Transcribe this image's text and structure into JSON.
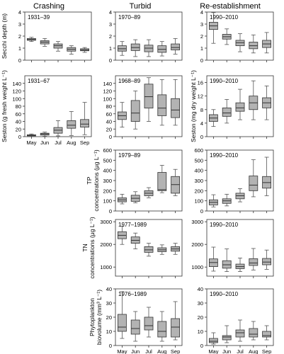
{
  "colors": {
    "box_fill": "#b3b3b3",
    "stroke": "#333333",
    "whisker": "#555555",
    "background": "#ffffff"
  },
  "chart_data": {
    "type": "box",
    "columns": [
      "Crashing",
      "Turbid",
      "Re-establishment"
    ],
    "months": [
      "May",
      "Jun",
      "Jul",
      "Aug",
      "Sep"
    ],
    "rows": [
      {
        "ylabel": [
          "Secchi depth (m)"
        ],
        "ylim": [
          0,
          4
        ],
        "ticks": [
          0,
          1,
          2,
          3,
          4
        ]
      },
      {
        "ylabel": [
          "Seston (g fresh weight L⁻¹)"
        ],
        "ylabel_right": [
          "Seston (mg dry weight L⁻¹)"
        ],
        "ylim": [
          0,
          160
        ],
        "ticks": [
          0,
          20,
          40,
          60,
          80,
          100,
          120,
          140
        ],
        "ylim_right": [
          0,
          18
        ],
        "ticks_right": [
          0,
          4,
          8,
          12,
          16
        ]
      },
      {
        "ylabel": [
          "TP",
          "concentrations (μg L⁻¹)"
        ],
        "ylim": [
          0,
          600
        ],
        "ticks": [
          0,
          100,
          200,
          300,
          400,
          500,
          600
        ]
      },
      {
        "ylabel": [
          "TN",
          "concentrations (μg L⁻¹)"
        ],
        "ylim": [
          600,
          3100
        ],
        "ticks": [
          1000,
          2000,
          3000
        ]
      },
      {
        "ylabel": [
          "Phytoplankton",
          "biovolume (mm³ L⁻¹)"
        ],
        "ylim": [
          0,
          40
        ],
        "ticks": [
          0,
          10,
          20,
          30,
          40
        ]
      }
    ],
    "panels": [
      {
        "row": 0,
        "col": 0,
        "period": "1931–39",
        "boxes": [
          {
            "min": 1.55,
            "q1": 1.65,
            "median": 1.72,
            "q3": 1.8,
            "max": 1.9
          },
          {
            "min": 1.15,
            "q1": 1.35,
            "median": 1.5,
            "q3": 1.62,
            "max": 1.8
          },
          {
            "min": 0.75,
            "q1": 1.0,
            "median": 1.2,
            "q3": 1.35,
            "max": 1.55
          },
          {
            "min": 0.5,
            "q1": 0.75,
            "median": 0.9,
            "q3": 1.05,
            "max": 1.2
          },
          {
            "min": 0.65,
            "q1": 0.78,
            "median": 0.85,
            "q3": 0.95,
            "max": 1.05
          }
        ]
      },
      {
        "row": 0,
        "col": 1,
        "period": "1970–89",
        "boxes": [
          {
            "min": 0.4,
            "q1": 0.75,
            "median": 0.95,
            "q3": 1.2,
            "max": 1.55
          },
          {
            "min": 0.3,
            "q1": 0.8,
            "median": 1.05,
            "q3": 1.35,
            "max": 1.7
          },
          {
            "min": 0.3,
            "q1": 0.7,
            "median": 1.0,
            "q3": 1.25,
            "max": 1.7
          },
          {
            "min": 0.35,
            "q1": 0.65,
            "median": 0.9,
            "q3": 1.2,
            "max": 1.55
          },
          {
            "min": 0.5,
            "q1": 0.85,
            "median": 1.05,
            "q3": 1.35,
            "max": 1.8
          }
        ]
      },
      {
        "row": 0,
        "col": 2,
        "period": "1990–2010",
        "boxes": [
          {
            "min": 1.4,
            "q1": 2.55,
            "median": 2.85,
            "q3": 3.15,
            "max": 3.95
          },
          {
            "min": 1.3,
            "q1": 1.75,
            "median": 1.95,
            "q3": 2.15,
            "max": 2.6
          },
          {
            "min": 0.7,
            "q1": 1.2,
            "median": 1.45,
            "q3": 1.65,
            "max": 2.2
          },
          {
            "min": 0.6,
            "q1": 0.95,
            "median": 1.2,
            "q3": 1.5,
            "max": 2.1
          },
          {
            "min": 0.6,
            "q1": 1.05,
            "median": 1.35,
            "q3": 1.65,
            "max": 2.3
          }
        ]
      },
      {
        "row": 1,
        "col": 0,
        "period": "1931–67",
        "boxes": [
          {
            "min": 0,
            "q1": 2,
            "median": 3,
            "q3": 5,
            "max": 7
          },
          {
            "min": 1,
            "q1": 4,
            "median": 7,
            "q3": 9,
            "max": 12
          },
          {
            "min": 2,
            "q1": 9,
            "median": 17,
            "q3": 24,
            "max": 42
          },
          {
            "min": 3,
            "q1": 22,
            "median": 30,
            "q3": 42,
            "max": 66
          },
          {
            "min": 5,
            "q1": 25,
            "median": 33,
            "q3": 45,
            "max": 90
          }
        ]
      },
      {
        "row": 1,
        "col": 1,
        "period": "1968–89",
        "boxes": [
          {
            "min": 25,
            "q1": 45,
            "median": 55,
            "q3": 65,
            "max": 90
          },
          {
            "min": 20,
            "q1": 40,
            "median": 62,
            "q3": 95,
            "max": 120
          },
          {
            "min": 40,
            "q1": 75,
            "median": 105,
            "q3": 138,
            "max": 155
          },
          {
            "min": 30,
            "q1": 55,
            "median": 75,
            "q3": 110,
            "max": 150
          },
          {
            "min": 30,
            "q1": 50,
            "median": 70,
            "q3": 100,
            "max": 150
          }
        ]
      },
      {
        "row": 1,
        "col": 2,
        "period": "1990–2010",
        "boxes": [
          {
            "min": 3,
            "q1": 4.5,
            "median": 5.5,
            "q3": 6.5,
            "max": 8
          },
          {
            "min": 4,
            "q1": 6,
            "median": 7,
            "q3": 8.5,
            "max": 11
          },
          {
            "min": 5,
            "q1": 7.5,
            "median": 8.5,
            "q3": 10,
            "max": 14
          },
          {
            "min": 5,
            "q1": 8,
            "median": 10,
            "q3": 12,
            "max": 16.5
          },
          {
            "min": 5,
            "q1": 8.5,
            "median": 10,
            "q3": 11.5,
            "max": 15
          }
        ]
      },
      {
        "row": 2,
        "col": 1,
        "period": "1979–89",
        "boxes": [
          {
            "min": 70,
            "q1": 90,
            "median": 110,
            "q3": 130,
            "max": 165
          },
          {
            "min": 80,
            "q1": 95,
            "median": 125,
            "q3": 155,
            "max": 190
          },
          {
            "min": 130,
            "q1": 150,
            "median": 175,
            "q3": 200,
            "max": 230
          },
          {
            "min": 180,
            "q1": 200,
            "median": 210,
            "q3": 380,
            "max": 450
          },
          {
            "min": 150,
            "q1": 175,
            "median": 260,
            "q3": 340,
            "max": 410
          }
        ]
      },
      {
        "row": 2,
        "col": 2,
        "period": "1990–2010",
        "boxes": [
          {
            "min": 40,
            "q1": 60,
            "median": 85,
            "q3": 110,
            "max": 160
          },
          {
            "min": 50,
            "q1": 75,
            "median": 100,
            "q3": 120,
            "max": 165
          },
          {
            "min": 90,
            "q1": 120,
            "median": 150,
            "q3": 175,
            "max": 220
          },
          {
            "min": 140,
            "q1": 200,
            "median": 255,
            "q3": 345,
            "max": 505
          },
          {
            "min": 150,
            "q1": 225,
            "median": 280,
            "q3": 340,
            "max": 530
          }
        ]
      },
      {
        "row": 3,
        "col": 1,
        "period": "1977–1989",
        "boxes": [
          {
            "min": 2000,
            "q1": 2250,
            "median": 2400,
            "q3": 2560,
            "max": 2800
          },
          {
            "min": 1800,
            "q1": 2050,
            "median": 2180,
            "q3": 2330,
            "max": 2500
          },
          {
            "min": 1480,
            "q1": 1650,
            "median": 1760,
            "q3": 1900,
            "max": 2050
          },
          {
            "min": 1560,
            "q1": 1680,
            "median": 1760,
            "q3": 1850,
            "max": 1980
          },
          {
            "min": 1560,
            "q1": 1700,
            "median": 1800,
            "q3": 1900,
            "max": 2050
          }
        ]
      },
      {
        "row": 3,
        "col": 2,
        "period": "1990–2010",
        "boxes": [
          {
            "min": 820,
            "q1": 1020,
            "median": 1200,
            "q3": 1360,
            "max": 1880
          },
          {
            "min": 800,
            "q1": 950,
            "median": 1100,
            "q3": 1280,
            "max": 1800
          },
          {
            "min": 800,
            "q1": 930,
            "median": 1020,
            "q3": 1130,
            "max": 1400
          },
          {
            "min": 870,
            "q1": 1070,
            "median": 1180,
            "q3": 1370,
            "max": 1820
          },
          {
            "min": 900,
            "q1": 1100,
            "median": 1220,
            "q3": 1380,
            "max": 1750
          }
        ]
      },
      {
        "row": 4,
        "col": 1,
        "period": "1976–1989",
        "boxes": [
          {
            "min": 5,
            "q1": 10,
            "median": 13,
            "q3": 22,
            "max": 38
          },
          {
            "min": 3,
            "q1": 8,
            "median": 12,
            "q3": 18,
            "max": 24
          },
          {
            "min": 6,
            "q1": 11,
            "median": 14,
            "q3": 20,
            "max": 27
          },
          {
            "min": 3,
            "q1": 6,
            "median": 10,
            "q3": 17,
            "max": 24
          },
          {
            "min": 4,
            "q1": 6,
            "median": 13,
            "q3": 19,
            "max": 31
          }
        ]
      },
      {
        "row": 4,
        "col": 2,
        "period": "1990–2010",
        "boxes": [
          {
            "min": 1,
            "q1": 2,
            "median": 3,
            "q3": 5,
            "max": 9
          },
          {
            "min": 2,
            "q1": 4,
            "median": 6,
            "q3": 7,
            "max": 14
          },
          {
            "min": 3,
            "q1": 6,
            "median": 9,
            "q3": 11,
            "max": 18
          },
          {
            "min": 4,
            "q1": 6,
            "median": 8,
            "q3": 12,
            "max": 17
          },
          {
            "min": 4,
            "q1": 6,
            "median": 7,
            "q3": 10,
            "max": 14
          }
        ]
      }
    ]
  }
}
